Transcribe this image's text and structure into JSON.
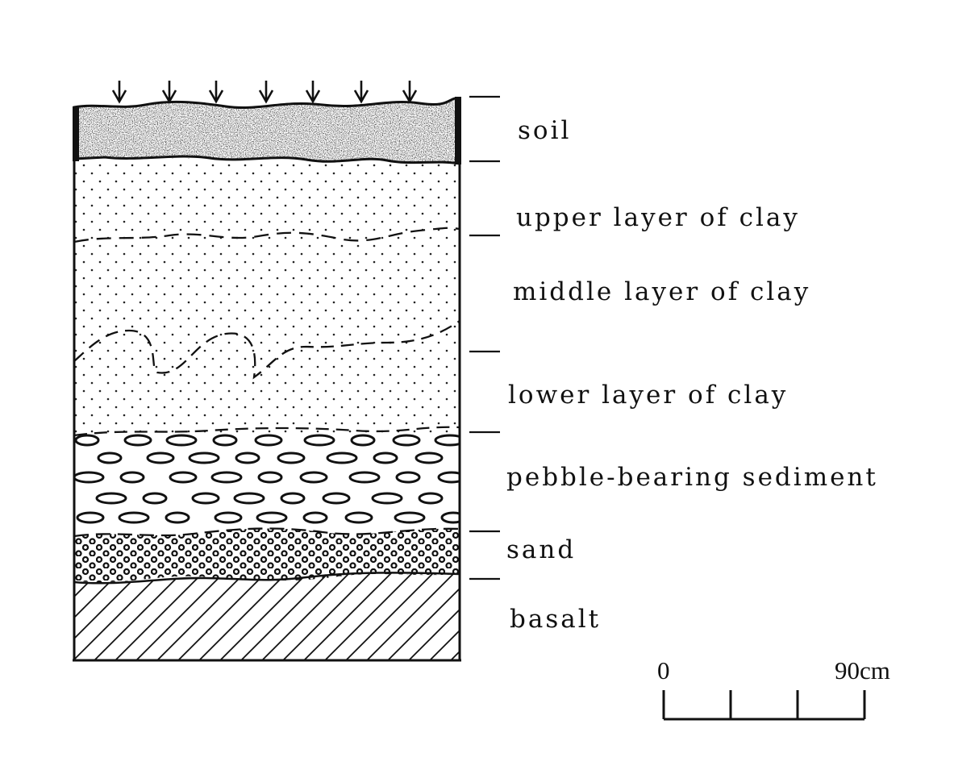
{
  "layers": [
    {
      "id": "soil",
      "label": "soil"
    },
    {
      "id": "upper-clay",
      "label": "upper layer of clay"
    },
    {
      "id": "middle-clay",
      "label": "middle layer of clay"
    },
    {
      "id": "lower-clay",
      "label": "lower layer of clay"
    },
    {
      "id": "pebble",
      "label": "pebble-bearing sediment"
    },
    {
      "id": "sand",
      "label": "sand"
    },
    {
      "id": "basalt",
      "label": "basalt"
    }
  ],
  "scale": {
    "start_label": "0",
    "end_label": "90cm",
    "divisions": 3
  },
  "colors": {
    "ink": "#111111",
    "paper": "#ffffff"
  }
}
